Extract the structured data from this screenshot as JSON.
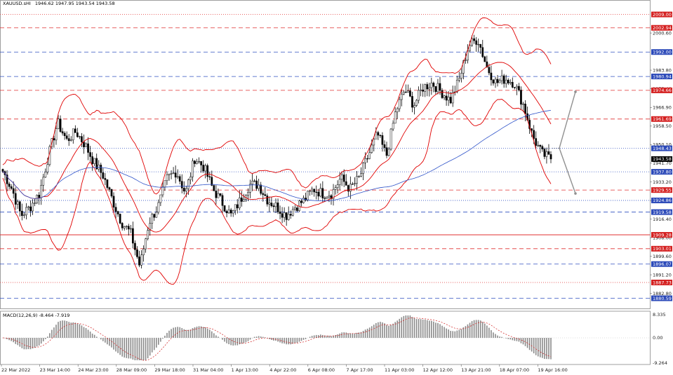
{
  "header": {
    "symbol": "XAUUSD.sHI",
    "ohlc": "1946.62 1947.95 1943.54 1943.58"
  },
  "macd": {
    "label": "MACD(12,26,9) -8.464 -7.919",
    "axis": [
      "8.335",
      "0.00",
      "-9.264"
    ]
  },
  "colors": {
    "bull": "#000000",
    "bear": "#000000",
    "bands": "#e00000",
    "ma": "#2f53c9",
    "level_red": "#e03030",
    "level_blue": "#3050c0",
    "badge_red": "#d42020",
    "badge_blue": "#2a48b8",
    "arrow": "#909090"
  },
  "chart_data": {
    "type": "candlestick",
    "title": "XAUUSD.sHI",
    "ylim": [
      1876,
      2013
    ],
    "x_ticks": [
      "22 Mar 2022",
      "23 Mar 14:00",
      "24 Mar 23:00",
      "28 Mar 09:00",
      "29 Mar 18:00",
      "31 Mar 04:00",
      "1 Apr 13:00",
      "4 Apr 22:00",
      "6 Apr 08:00",
      "7 Apr 17:00",
      "11 Apr 03:00",
      "12 Apr 12:00",
      "13 Apr 21:00",
      "18 Apr 07:00",
      "19 Apr 16:00"
    ],
    "y_ticks": [
      "2000.60",
      "1983.80",
      "1975.40",
      "1966.90",
      "1958.50",
      "1950.10",
      "1941.70",
      "1933.20",
      "1924.80",
      "1916.40",
      "1908.00",
      "1899.60",
      "1891.20",
      "1882.80"
    ],
    "levels": [
      {
        "label": "2009.00",
        "value": 2009.0,
        "color": "red",
        "style": "dotted"
      },
      {
        "label": "2002.94",
        "value": 2002.94,
        "color": "red",
        "style": "dashed"
      },
      {
        "label": "1992.00",
        "value": 1992.0,
        "color": "blue",
        "style": "dashed"
      },
      {
        "label": "1980.94",
        "value": 1980.94,
        "color": "blue",
        "style": "dashed"
      },
      {
        "label": "1974.66",
        "value": 1974.66,
        "color": "red",
        "style": "dashed"
      },
      {
        "label": "1961.69",
        "value": 1961.69,
        "color": "red",
        "style": "dashed"
      },
      {
        "label": "1948.43",
        "value": 1948.43,
        "color": "blue",
        "style": "dotted"
      },
      {
        "label": "1937.80",
        "value": 1937.8,
        "color": "blue",
        "style": "dotted"
      },
      {
        "label": "1929.55",
        "value": 1929.55,
        "color": "red",
        "style": "dashed"
      },
      {
        "label": "1924.86",
        "value": 1924.86,
        "color": "blue",
        "style": "dotted"
      },
      {
        "label": "1919.58",
        "value": 1919.58,
        "color": "blue",
        "style": "dashed"
      },
      {
        "label": "1909.28",
        "value": 1909.28,
        "color": "red",
        "style": "solid"
      },
      {
        "label": "1903.01",
        "value": 1903.01,
        "color": "red",
        "style": "dashed"
      },
      {
        "label": "1896.07",
        "value": 1896.07,
        "color": "blue",
        "style": "dashed"
      },
      {
        "label": "1887.73",
        "value": 1887.73,
        "color": "red",
        "style": "dotted"
      },
      {
        "label": "1880.59",
        "value": 1880.59,
        "color": "blue",
        "style": "dashed"
      }
    ],
    "current_price": "1943.58",
    "price_path": [
      1938,
      1930,
      1918,
      1922,
      1928,
      1945,
      1960,
      1952,
      1956,
      1950,
      1942,
      1936,
      1925,
      1915,
      1910,
      1895,
      1915,
      1922,
      1935,
      1938,
      1928,
      1944,
      1940,
      1930,
      1924,
      1918,
      1925,
      1932,
      1932,
      1925,
      1922,
      1918,
      1922,
      1925,
      1930,
      1928,
      1928,
      1935,
      1930,
      1935,
      1945,
      1955,
      1945,
      1965,
      1975,
      1968,
      1976,
      1978,
      1974,
      1970,
      1980,
      1995,
      1998,
      1985,
      1978,
      1980,
      1978,
      1968,
      1954,
      1946,
      1943.58
    ]
  }
}
